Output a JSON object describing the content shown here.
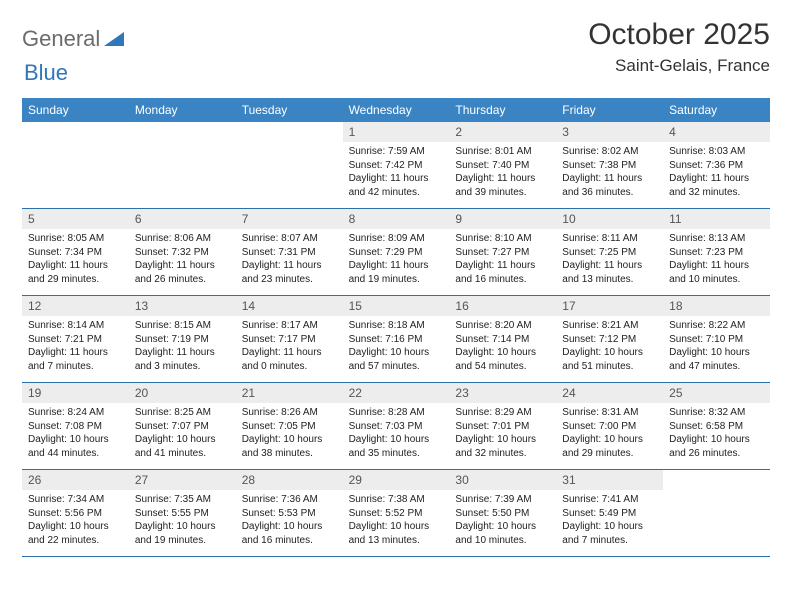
{
  "brand": {
    "word1": "General",
    "word2": "Blue"
  },
  "title": {
    "month": "October 2025",
    "location": "Saint-Gelais, France"
  },
  "colors": {
    "header_bg": "#3b84c4",
    "header_text": "#ffffff",
    "daynum_bg": "#ededed",
    "rule": "#2f6fa8",
    "logo_gray": "#6b6b6b",
    "logo_blue": "#2f77b9"
  },
  "dow": [
    "Sunday",
    "Monday",
    "Tuesday",
    "Wednesday",
    "Thursday",
    "Friday",
    "Saturday"
  ],
  "weeks": [
    [
      {
        "n": "",
        "sr": "",
        "ss": "",
        "dl": ""
      },
      {
        "n": "",
        "sr": "",
        "ss": "",
        "dl": ""
      },
      {
        "n": "",
        "sr": "",
        "ss": "",
        "dl": ""
      },
      {
        "n": "1",
        "sr": "Sunrise: 7:59 AM",
        "ss": "Sunset: 7:42 PM",
        "dl": "Daylight: 11 hours and 42 minutes."
      },
      {
        "n": "2",
        "sr": "Sunrise: 8:01 AM",
        "ss": "Sunset: 7:40 PM",
        "dl": "Daylight: 11 hours and 39 minutes."
      },
      {
        "n": "3",
        "sr": "Sunrise: 8:02 AM",
        "ss": "Sunset: 7:38 PM",
        "dl": "Daylight: 11 hours and 36 minutes."
      },
      {
        "n": "4",
        "sr": "Sunrise: 8:03 AM",
        "ss": "Sunset: 7:36 PM",
        "dl": "Daylight: 11 hours and 32 minutes."
      }
    ],
    [
      {
        "n": "5",
        "sr": "Sunrise: 8:05 AM",
        "ss": "Sunset: 7:34 PM",
        "dl": "Daylight: 11 hours and 29 minutes."
      },
      {
        "n": "6",
        "sr": "Sunrise: 8:06 AM",
        "ss": "Sunset: 7:32 PM",
        "dl": "Daylight: 11 hours and 26 minutes."
      },
      {
        "n": "7",
        "sr": "Sunrise: 8:07 AM",
        "ss": "Sunset: 7:31 PM",
        "dl": "Daylight: 11 hours and 23 minutes."
      },
      {
        "n": "8",
        "sr": "Sunrise: 8:09 AM",
        "ss": "Sunset: 7:29 PM",
        "dl": "Daylight: 11 hours and 19 minutes."
      },
      {
        "n": "9",
        "sr": "Sunrise: 8:10 AM",
        "ss": "Sunset: 7:27 PM",
        "dl": "Daylight: 11 hours and 16 minutes."
      },
      {
        "n": "10",
        "sr": "Sunrise: 8:11 AM",
        "ss": "Sunset: 7:25 PM",
        "dl": "Daylight: 11 hours and 13 minutes."
      },
      {
        "n": "11",
        "sr": "Sunrise: 8:13 AM",
        "ss": "Sunset: 7:23 PM",
        "dl": "Daylight: 11 hours and 10 minutes."
      }
    ],
    [
      {
        "n": "12",
        "sr": "Sunrise: 8:14 AM",
        "ss": "Sunset: 7:21 PM",
        "dl": "Daylight: 11 hours and 7 minutes."
      },
      {
        "n": "13",
        "sr": "Sunrise: 8:15 AM",
        "ss": "Sunset: 7:19 PM",
        "dl": "Daylight: 11 hours and 3 minutes."
      },
      {
        "n": "14",
        "sr": "Sunrise: 8:17 AM",
        "ss": "Sunset: 7:17 PM",
        "dl": "Daylight: 11 hours and 0 minutes."
      },
      {
        "n": "15",
        "sr": "Sunrise: 8:18 AM",
        "ss": "Sunset: 7:16 PM",
        "dl": "Daylight: 10 hours and 57 minutes."
      },
      {
        "n": "16",
        "sr": "Sunrise: 8:20 AM",
        "ss": "Sunset: 7:14 PM",
        "dl": "Daylight: 10 hours and 54 minutes."
      },
      {
        "n": "17",
        "sr": "Sunrise: 8:21 AM",
        "ss": "Sunset: 7:12 PM",
        "dl": "Daylight: 10 hours and 51 minutes."
      },
      {
        "n": "18",
        "sr": "Sunrise: 8:22 AM",
        "ss": "Sunset: 7:10 PM",
        "dl": "Daylight: 10 hours and 47 minutes."
      }
    ],
    [
      {
        "n": "19",
        "sr": "Sunrise: 8:24 AM",
        "ss": "Sunset: 7:08 PM",
        "dl": "Daylight: 10 hours and 44 minutes."
      },
      {
        "n": "20",
        "sr": "Sunrise: 8:25 AM",
        "ss": "Sunset: 7:07 PM",
        "dl": "Daylight: 10 hours and 41 minutes."
      },
      {
        "n": "21",
        "sr": "Sunrise: 8:26 AM",
        "ss": "Sunset: 7:05 PM",
        "dl": "Daylight: 10 hours and 38 minutes."
      },
      {
        "n": "22",
        "sr": "Sunrise: 8:28 AM",
        "ss": "Sunset: 7:03 PM",
        "dl": "Daylight: 10 hours and 35 minutes."
      },
      {
        "n": "23",
        "sr": "Sunrise: 8:29 AM",
        "ss": "Sunset: 7:01 PM",
        "dl": "Daylight: 10 hours and 32 minutes."
      },
      {
        "n": "24",
        "sr": "Sunrise: 8:31 AM",
        "ss": "Sunset: 7:00 PM",
        "dl": "Daylight: 10 hours and 29 minutes."
      },
      {
        "n": "25",
        "sr": "Sunrise: 8:32 AM",
        "ss": "Sunset: 6:58 PM",
        "dl": "Daylight: 10 hours and 26 minutes."
      }
    ],
    [
      {
        "n": "26",
        "sr": "Sunrise: 7:34 AM",
        "ss": "Sunset: 5:56 PM",
        "dl": "Daylight: 10 hours and 22 minutes."
      },
      {
        "n": "27",
        "sr": "Sunrise: 7:35 AM",
        "ss": "Sunset: 5:55 PM",
        "dl": "Daylight: 10 hours and 19 minutes."
      },
      {
        "n": "28",
        "sr": "Sunrise: 7:36 AM",
        "ss": "Sunset: 5:53 PM",
        "dl": "Daylight: 10 hours and 16 minutes."
      },
      {
        "n": "29",
        "sr": "Sunrise: 7:38 AM",
        "ss": "Sunset: 5:52 PM",
        "dl": "Daylight: 10 hours and 13 minutes."
      },
      {
        "n": "30",
        "sr": "Sunrise: 7:39 AM",
        "ss": "Sunset: 5:50 PM",
        "dl": "Daylight: 10 hours and 10 minutes."
      },
      {
        "n": "31",
        "sr": "Sunrise: 7:41 AM",
        "ss": "Sunset: 5:49 PM",
        "dl": "Daylight: 10 hours and 7 minutes."
      },
      {
        "n": "",
        "sr": "",
        "ss": "",
        "dl": ""
      }
    ]
  ]
}
